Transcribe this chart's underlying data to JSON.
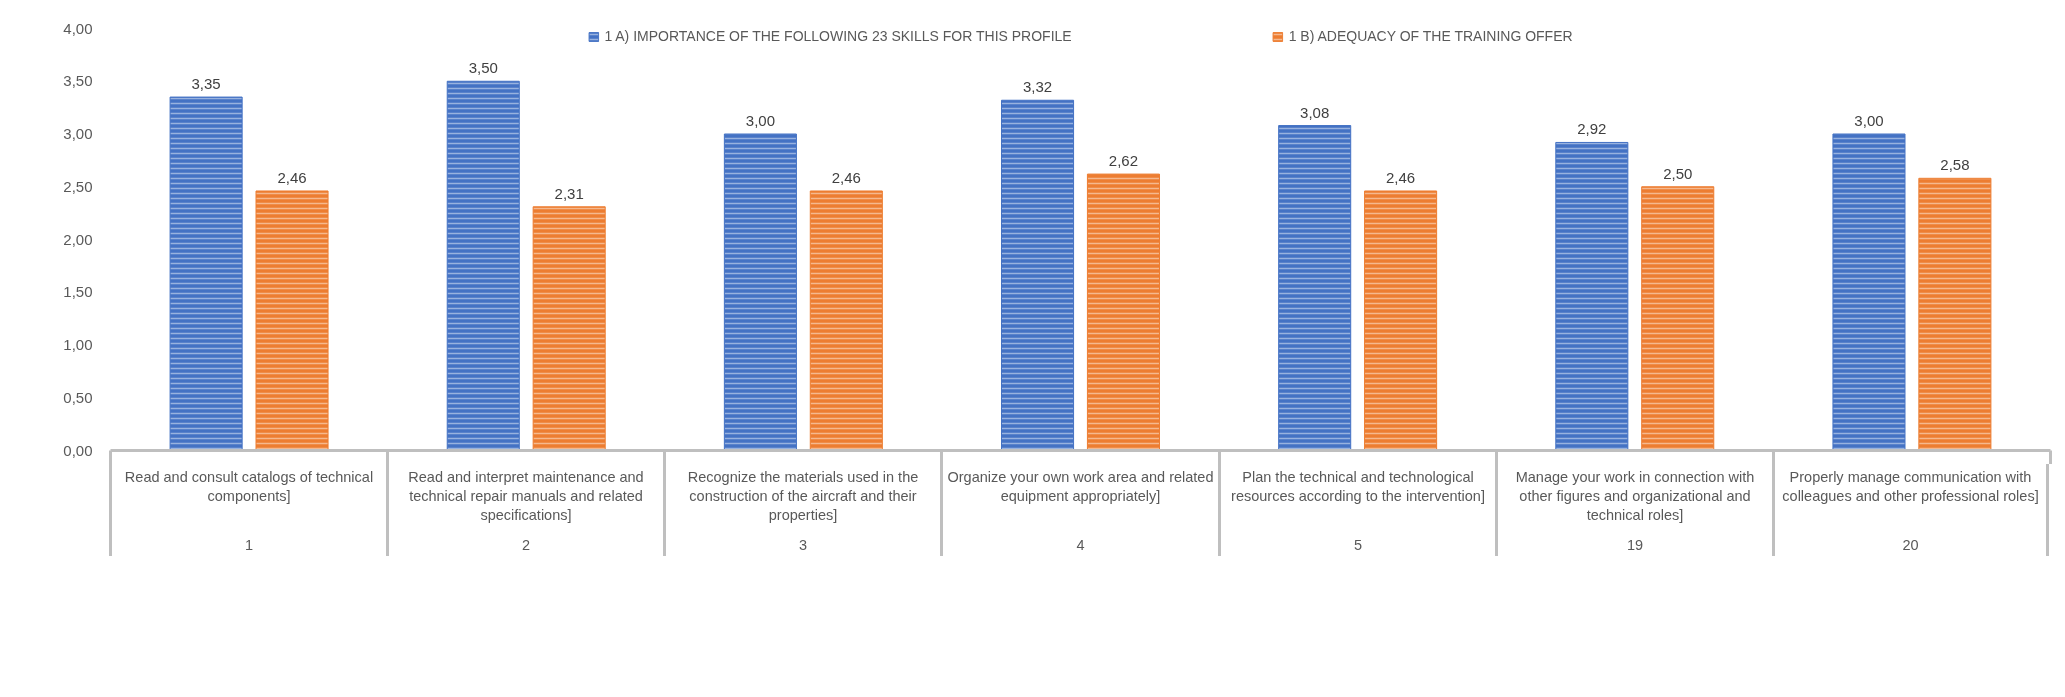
{
  "chart_data": {
    "type": "bar",
    "categories": [
      "Read and consult catalogs of technical components]\n1",
      "Read and interpret maintenance and technical repair manuals and related specifications]\n2",
      "Recognize the materials used in the construction of the aircraft and their properties]\n3",
      "Organize your own work area and related equipment appropriately]\n4",
      "Plan the technical and technological resources according to the intervention]\n5",
      "Manage your work in connection with other figures and organizational and technical roles]\n19",
      "Properly manage communication with colleagues and other professional roles]\n20"
    ],
    "series": [
      {
        "name": "1 A) IMPORTANCE OF THE FOLLOWING 23 SKILLS FOR THIS PROFILE",
        "color": "#4472c4",
        "values": [
          3.35,
          3.5,
          3.0,
          3.32,
          3.08,
          2.92,
          3.0
        ],
        "value_labels": [
          "3,35",
          "3,50",
          "3,00",
          "3,32",
          "3,08",
          "2,92",
          "3,00"
        ]
      },
      {
        "name": "1 B) ADEQUACY OF THE TRAINING OFFER",
        "color": "#ed7d31",
        "values": [
          2.46,
          2.31,
          2.46,
          2.62,
          2.46,
          2.5,
          2.58
        ],
        "value_labels": [
          "2,46",
          "2,31",
          "2,46",
          "2,62",
          "2,46",
          "2,50",
          "2,58"
        ]
      }
    ],
    "ylim": [
      0,
      4
    ],
    "yticks": [
      {
        "value": 0,
        "label": "0,00"
      },
      {
        "value": 0.5,
        "label": "0,50"
      },
      {
        "value": 1,
        "label": "1,00"
      },
      {
        "value": 1.5,
        "label": "1,50"
      },
      {
        "value": 2,
        "label": "2,00"
      },
      {
        "value": 2.5,
        "label": "2,50"
      },
      {
        "value": 3,
        "label": "3,00"
      },
      {
        "value": 3.5,
        "label": "3,50"
      },
      {
        "value": 4,
        "label": "4,00"
      }
    ],
    "legend": "top",
    "grid": false
  }
}
